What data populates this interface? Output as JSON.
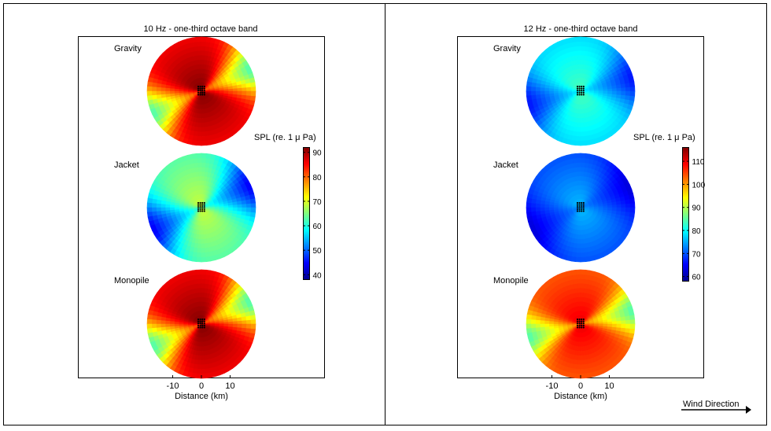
{
  "wind_direction_label": "Wind Direction",
  "colors": {
    "frame": "#000000",
    "plot_bg": "#ffffff",
    "cluster": "#000000"
  },
  "chart_data": [
    {
      "type": "heatmap",
      "title": "10 Hz - one-third octave band",
      "xlabel": "Distance (km)",
      "x_ticks": [
        -10,
        0,
        10
      ],
      "colorbar": {
        "label": "SPL (re. 1 μ Pa)",
        "min": 38,
        "max": 92,
        "ticks": [
          40,
          50,
          60,
          70,
          80,
          90
        ]
      },
      "panels": [
        {
          "name": "Gravity",
          "base": 86,
          "min": 62,
          "lobe_angle": 205,
          "lobe_width": 40
        },
        {
          "name": "Jacket",
          "base": 63,
          "min": 44,
          "lobe_angle": 205,
          "lobe_width": 50
        },
        {
          "name": "Monopile",
          "base": 86,
          "min": 62,
          "lobe_angle": 205,
          "lobe_width": 40
        }
      ]
    },
    {
      "type": "heatmap",
      "title": "12 Hz - one-third octave band",
      "xlabel": "Distance (km)",
      "x_ticks": [
        -10,
        0,
        10
      ],
      "colorbar": {
        "label": "SPL (re. 1 μ Pa)",
        "min": 58,
        "max": 116,
        "ticks": [
          60,
          70,
          80,
          90,
          100,
          110
        ]
      },
      "panels": [
        {
          "name": "Gravity",
          "base": 78,
          "min": 66,
          "lobe_angle": 195,
          "lobe_width": 45
        },
        {
          "name": "Jacket",
          "base": 70,
          "min": 63,
          "lobe_angle": 205,
          "lobe_width": 50
        },
        {
          "name": "Monopile",
          "base": 104,
          "min": 84,
          "lobe_angle": 195,
          "lobe_width": 35
        }
      ]
    }
  ]
}
